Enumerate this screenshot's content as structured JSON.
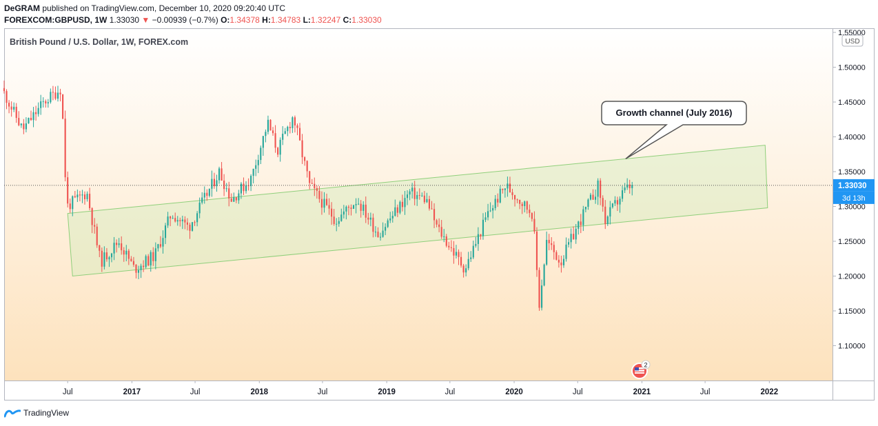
{
  "header": {
    "author": "DeGRAM",
    "published": "published on TradingView.com, December 10, 2020 09:20:40 UTC",
    "symbol": "FOREXCOM:GBPUSD, 1W",
    "last": "1.33030",
    "change": "−0.00939 (−0.7%)",
    "open_label": "O:",
    "open": "1.34378",
    "high_label": "H:",
    "high": "1.34783",
    "low_label": "L:",
    "low": "1.32247",
    "close_label": "C:",
    "close": "1.33030"
  },
  "footer": {
    "brand": "TradingView"
  },
  "colors": {
    "up": "#26a69a",
    "down": "#ef5350",
    "channel": "#8fcf7a",
    "price_tag": "#2196f3"
  },
  "chart_data": {
    "type": "candlestick",
    "title": "British Pound / U.S. Dollar, 1W, FOREX.com",
    "currency": "USD",
    "ylim": [
      1.05,
      1.55
    ],
    "y_ticks": [
      "1.10000",
      "1.15000",
      "1.20000",
      "1.25000",
      "1.30000",
      "1.35000",
      "1.40000",
      "1.45000",
      "1.50000",
      "1.55000"
    ],
    "x_ticks": [
      {
        "date": "2016-07-01",
        "label": "Jul"
      },
      {
        "date": "2017-01-01",
        "label": "2017"
      },
      {
        "date": "2017-07-01",
        "label": "Jul"
      },
      {
        "date": "2018-01-01",
        "label": "2018"
      },
      {
        "date": "2018-07-01",
        "label": "Jul"
      },
      {
        "date": "2019-01-01",
        "label": "2019"
      },
      {
        "date": "2019-07-01",
        "label": "Jul"
      },
      {
        "date": "2020-01-01",
        "label": "2020"
      },
      {
        "date": "2020-07-01",
        "label": "Jul"
      },
      {
        "date": "2021-01-01",
        "label": "2021"
      },
      {
        "date": "2021-07-01",
        "label": "Jul"
      },
      {
        "date": "2022-01-01",
        "label": "2022"
      }
    ],
    "x_range": [
      "2016-01-01",
      "2022-07-01"
    ],
    "price_label": "1.33030",
    "countdown_label": "3d 13h",
    "annotation": "Growth channel (July 2016)",
    "channel": {
      "upper": [
        {
          "date": "2016-07-01",
          "price": 1.29
        },
        {
          "date": "2021-12-20",
          "price": 1.388
        }
      ],
      "lower": [
        {
          "date": "2016-07-15",
          "price": 1.2
        },
        {
          "date": "2021-12-27",
          "price": 1.298
        }
      ]
    },
    "key_points": [
      {
        "date": "2016-01-01",
        "price": 1.47
      },
      {
        "date": "2016-03-01",
        "price": 1.41
      },
      {
        "date": "2016-05-01",
        "price": 1.45
      },
      {
        "date": "2016-06-20",
        "price": 1.47
      },
      {
        "date": "2016-07-05",
        "price": 1.3
      },
      {
        "date": "2016-09-01",
        "price": 1.32
      },
      {
        "date": "2016-10-10",
        "price": 1.22
      },
      {
        "date": "2016-12-01",
        "price": 1.25
      },
      {
        "date": "2017-01-15",
        "price": 1.21
      },
      {
        "date": "2017-03-15",
        "price": 1.23
      },
      {
        "date": "2017-05-01",
        "price": 1.29
      },
      {
        "date": "2017-06-20",
        "price": 1.27
      },
      {
        "date": "2017-09-15",
        "price": 1.35
      },
      {
        "date": "2017-10-20",
        "price": 1.31
      },
      {
        "date": "2017-12-15",
        "price": 1.34
      },
      {
        "date": "2018-02-01",
        "price": 1.42
      },
      {
        "date": "2018-03-01",
        "price": 1.38
      },
      {
        "date": "2018-04-15",
        "price": 1.43
      },
      {
        "date": "2018-06-01",
        "price": 1.33
      },
      {
        "date": "2018-08-15",
        "price": 1.28
      },
      {
        "date": "2018-10-15",
        "price": 1.31
      },
      {
        "date": "2018-12-15",
        "price": 1.26
      },
      {
        "date": "2019-03-15",
        "price": 1.32
      },
      {
        "date": "2019-05-01",
        "price": 1.31
      },
      {
        "date": "2019-06-01",
        "price": 1.27
      },
      {
        "date": "2019-08-20",
        "price": 1.21
      },
      {
        "date": "2019-10-25",
        "price": 1.29
      },
      {
        "date": "2019-12-15",
        "price": 1.33
      },
      {
        "date": "2020-03-01",
        "price": 1.29
      },
      {
        "date": "2020-03-20",
        "price": 1.16
      },
      {
        "date": "2020-04-10",
        "price": 1.25
      },
      {
        "date": "2020-05-20",
        "price": 1.22
      },
      {
        "date": "2020-07-25",
        "price": 1.29
      },
      {
        "date": "2020-09-05",
        "price": 1.33
      },
      {
        "date": "2020-09-25",
        "price": 1.28
      },
      {
        "date": "2020-11-15",
        "price": 1.32
      },
      {
        "date": "2020-12-07",
        "price": 1.33
      }
    ]
  }
}
